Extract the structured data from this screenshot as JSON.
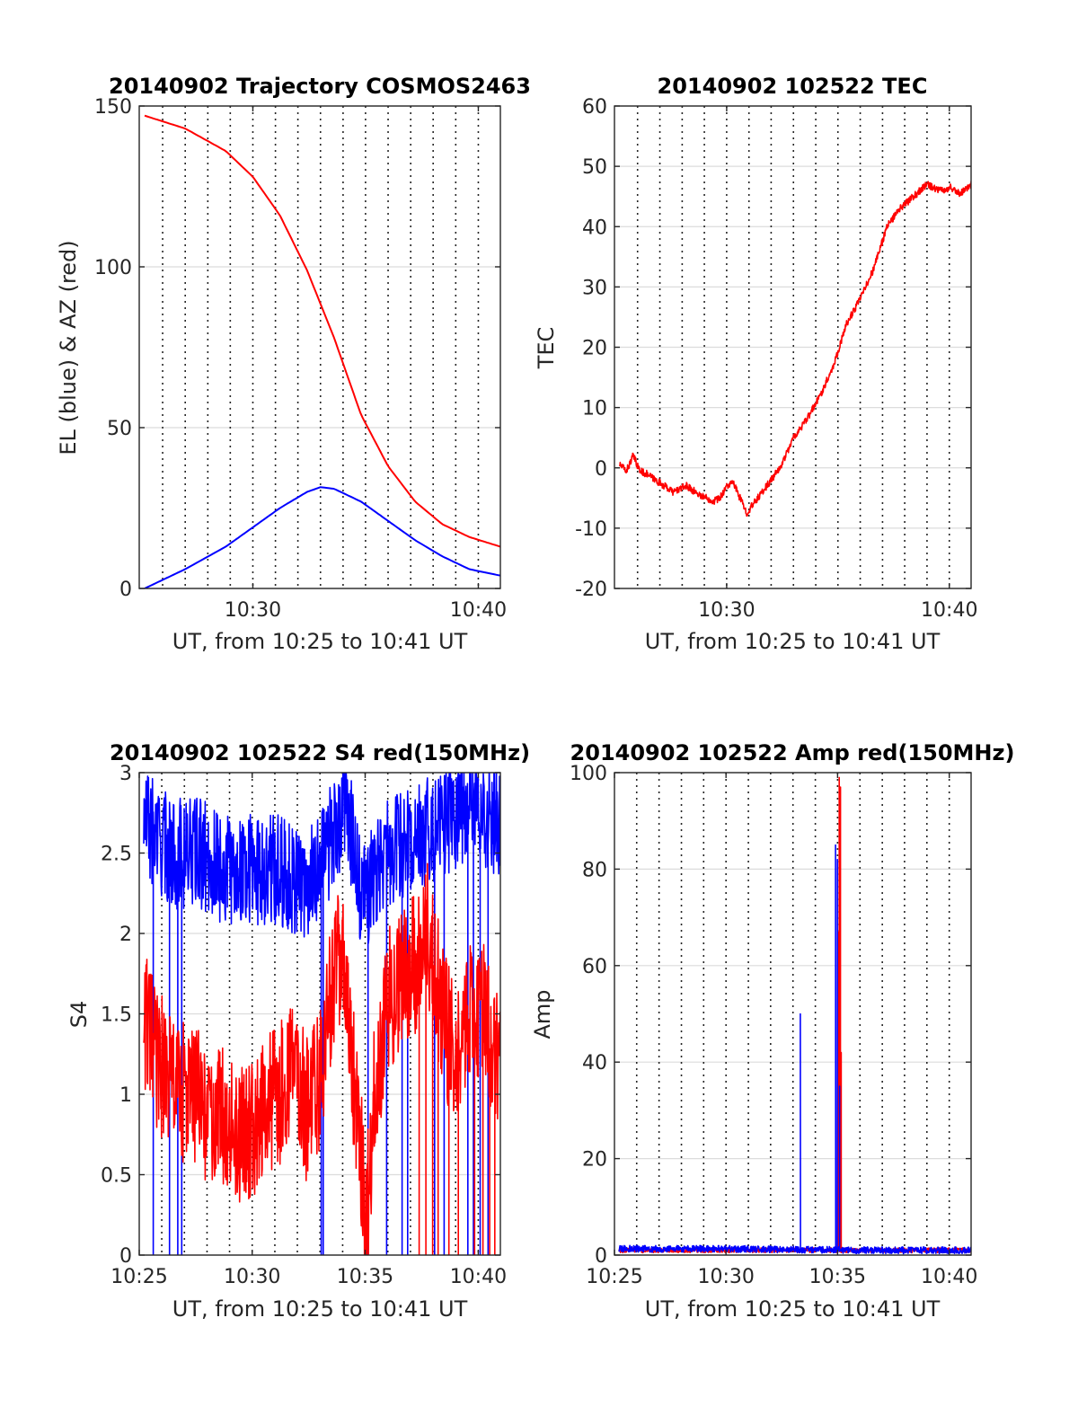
{
  "colors": {
    "red": "#ff0000",
    "blue": "#0000ff",
    "grid": "#dcdcdc",
    "axis": "#262626"
  },
  "chart_data": [
    {
      "id": "trajectory",
      "type": "line",
      "title": "20140902 Trajectory COSMOS2463",
      "xlabel": "UT, from 10:25 to 10:41 UT",
      "ylabel": "EL (blue) & AZ (red)",
      "xlim": [
        10.416,
        10.683
      ],
      "ylim": [
        0,
        150
      ],
      "xticks": [
        {
          "v": 10.5,
          "label": "10:30"
        },
        {
          "v": 10.6667,
          "label": "10:40"
        }
      ],
      "yticks": [
        {
          "v": 0,
          "label": "0"
        },
        {
          "v": 50,
          "label": "50"
        },
        {
          "v": 100,
          "label": "100"
        },
        {
          "v": 150,
          "label": "150"
        }
      ],
      "grid": true,
      "series": [
        {
          "color": "red",
          "kind": "curve",
          "x": [
            10.42,
            10.45,
            10.48,
            10.5,
            10.52,
            10.54,
            10.56,
            10.57,
            10.58,
            10.6,
            10.62,
            10.64,
            10.66,
            10.683
          ],
          "y": [
            147,
            143,
            136,
            128,
            116,
            99,
            78,
            66,
            54,
            38,
            27,
            20,
            16,
            13
          ]
        },
        {
          "color": "blue",
          "kind": "curve",
          "x": [
            10.42,
            10.45,
            10.48,
            10.5,
            10.52,
            10.54,
            10.55,
            10.56,
            10.58,
            10.6,
            10.62,
            10.64,
            10.66,
            10.683
          ],
          "y": [
            0,
            6,
            13,
            19,
            25,
            30,
            31.5,
            31,
            27,
            21,
            15,
            10,
            6,
            4
          ]
        }
      ]
    },
    {
      "id": "tec",
      "type": "line",
      "title": "20140902 102522 TEC",
      "xlabel": "UT, from 10:25 to 10:41 UT",
      "ylabel": "TEC",
      "xlim": [
        10.416,
        10.683
      ],
      "ylim": [
        -20,
        60
      ],
      "xticks": [
        {
          "v": 10.5,
          "label": "10:30"
        },
        {
          "v": 10.6667,
          "label": "10:40"
        }
      ],
      "yticks": [
        {
          "v": -20,
          "label": "-20"
        },
        {
          "v": -10,
          "label": "-10"
        },
        {
          "v": 0,
          "label": "0"
        },
        {
          "v": 10,
          "label": "10"
        },
        {
          "v": 20,
          "label": "20"
        },
        {
          "v": 30,
          "label": "30"
        },
        {
          "v": 40,
          "label": "40"
        },
        {
          "v": 50,
          "label": "50"
        },
        {
          "v": 60,
          "label": "60"
        }
      ],
      "grid": true,
      "series": [
        {
          "color": "red",
          "kind": "noisy",
          "noise": 0.6,
          "x": [
            10.42,
            10.425,
            10.43,
            10.435,
            10.44,
            10.45,
            10.46,
            10.47,
            10.48,
            10.49,
            10.495,
            10.5,
            10.505,
            10.51,
            10.515,
            10.52,
            10.53,
            10.54,
            10.55,
            10.56,
            10.57,
            10.58,
            10.59,
            10.6,
            10.61,
            10.62,
            10.63,
            10.64,
            10.65,
            10.66,
            10.668,
            10.675,
            10.683
          ],
          "y": [
            0.5,
            -0.5,
            2,
            -0.5,
            -1,
            -2.5,
            -4,
            -3,
            -4.5,
            -5.5,
            -5,
            -3,
            -2.5,
            -5,
            -7.5,
            -6,
            -3,
            0,
            5,
            8,
            12,
            17,
            24,
            28,
            33,
            40,
            43,
            45,
            47,
            46,
            46.5,
            45.5,
            47
          ]
        }
      ]
    },
    {
      "id": "s4",
      "type": "line",
      "title": "20140902 102522 S4 red(150MHz)",
      "xlabel": "UT, from 10:25 to 10:41 UT",
      "ylabel": "S4",
      "xlim": [
        10.4167,
        10.683
      ],
      "ylim": [
        0,
        3
      ],
      "xticks": [
        {
          "v": 10.4167,
          "label": "10:25"
        },
        {
          "v": 10.5,
          "label": "10:30"
        },
        {
          "v": 10.5833,
          "label": "10:35"
        },
        {
          "v": 10.6667,
          "label": "10:40"
        }
      ],
      "yticks": [
        {
          "v": 0,
          "label": "0"
        },
        {
          "v": 0.5,
          "label": "0.5"
        },
        {
          "v": 1,
          "label": "1"
        },
        {
          "v": 1.5,
          "label": "1.5"
        },
        {
          "v": 2,
          "label": "2"
        },
        {
          "v": 2.5,
          "label": "2.5"
        },
        {
          "v": 3,
          "label": "3"
        }
      ],
      "grid": true,
      "series": [
        {
          "color": "blue",
          "kind": "noisy",
          "noise": 0.35,
          "x": [
            10.42,
            10.44,
            10.46,
            10.48,
            10.5,
            10.52,
            10.54,
            10.56,
            10.57,
            10.58,
            10.6,
            10.62,
            10.64,
            10.66,
            10.683
          ],
          "y": [
            2.7,
            2.5,
            2.5,
            2.4,
            2.4,
            2.4,
            2.3,
            2.6,
            2.8,
            2.2,
            2.5,
            2.6,
            2.7,
            2.8,
            2.7
          ],
          "dropouts": [
            10.419,
            10.427,
            10.439,
            10.445,
            10.448,
            10.5508,
            10.5525,
            10.5855,
            10.599,
            10.6105,
            10.6145,
            10.6345,
            10.6415,
            10.659,
            10.663,
            10.668,
            10.674
          ]
        },
        {
          "color": "red",
          "kind": "noisy",
          "noise": 0.45,
          "x": [
            10.42,
            10.43,
            10.45,
            10.46,
            10.47,
            10.48,
            10.49,
            10.5,
            10.51,
            10.52,
            10.53,
            10.54,
            10.55,
            10.555,
            10.565,
            10.57,
            10.575,
            10.58,
            10.585,
            10.59,
            10.6,
            10.62,
            10.63,
            10.64,
            10.65,
            10.66,
            10.67,
            10.683
          ],
          "y": [
            1.5,
            1.2,
            1.0,
            1.0,
            0.8,
            0.9,
            0.7,
            0.8,
            0.9,
            1.0,
            1.2,
            0.9,
            1.1,
            1.5,
            1.9,
            1.5,
            1.1,
            0.6,
            0.3,
            1.0,
            1.6,
            1.8,
            2.0,
            1.5,
            1.2,
            1.5,
            1.5,
            1.2
          ],
          "dropouts": [
            10.623,
            10.628,
            10.633,
            10.637,
            10.645,
            10.652,
            10.664,
            10.67,
            10.675,
            10.679
          ]
        }
      ]
    },
    {
      "id": "amp",
      "type": "line",
      "title": "20140902 102522 Amp red(150MHz)",
      "xlabel": "UT, from 10:25 to 10:41 UT",
      "ylabel": "Amp",
      "xlim": [
        10.4167,
        10.683
      ],
      "ylim": [
        0,
        100
      ],
      "xticks": [
        {
          "v": 10.4167,
          "label": "10:25"
        },
        {
          "v": 10.5,
          "label": "10:30"
        },
        {
          "v": 10.5833,
          "label": "10:35"
        },
        {
          "v": 10.6667,
          "label": "10:40"
        }
      ],
      "yticks": [
        {
          "v": 0,
          "label": "0"
        },
        {
          "v": 20,
          "label": "20"
        },
        {
          "v": 40,
          "label": "40"
        },
        {
          "v": 60,
          "label": "60"
        },
        {
          "v": 80,
          "label": "80"
        },
        {
          "v": 100,
          "label": "100"
        }
      ],
      "grid": true,
      "series": [
        {
          "color": "red",
          "kind": "noisy",
          "noise": 0.5,
          "x": [
            10.42,
            10.5,
            10.58,
            10.683
          ],
          "y": [
            1,
            1,
            1,
            1
          ],
          "spikes": [
            [
              10.5835,
              67
            ],
            [
              10.5845,
              99
            ],
            [
              10.5855,
              97
            ],
            [
              10.586,
              42
            ]
          ]
        },
        {
          "color": "blue",
          "kind": "noisy",
          "noise": 0.7,
          "x": [
            10.42,
            10.5,
            10.56,
            10.58,
            10.59,
            10.683
          ],
          "y": [
            1.3,
            1.3,
            1.1,
            1.1,
            1.0,
            1.0
          ],
          "spikes": [
            [
              10.5555,
              50
            ],
            [
              10.5818,
              85
            ],
            [
              10.5832,
              82
            ],
            [
              10.5848,
              35
            ]
          ]
        }
      ]
    }
  ]
}
